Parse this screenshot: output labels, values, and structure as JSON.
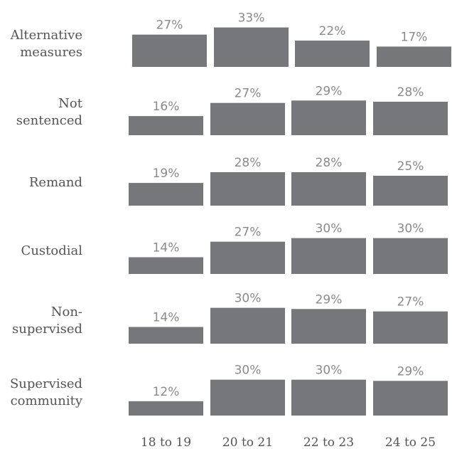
{
  "chart_data": {
    "type": "bar",
    "layout": "small-multiples",
    "categories": [
      "18 to 19",
      "20 to 21",
      "22 to 23",
      "24 to 25"
    ],
    "value_suffix": "%",
    "bar_color": "#75777a",
    "grid": false,
    "series": [
      {
        "name": "Alternative measures",
        "values": [
          27,
          33,
          22,
          17
        ]
      },
      {
        "name": "Not sentenced",
        "values": [
          16,
          27,
          29,
          28
        ]
      },
      {
        "name": "Remand",
        "values": [
          19,
          28,
          28,
          25
        ]
      },
      {
        "name": "Custodial",
        "values": [
          14,
          27,
          30,
          30
        ]
      },
      {
        "name": "Non-supervised",
        "values": [
          14,
          30,
          29,
          27
        ]
      },
      {
        "name": "Supervised community",
        "values": [
          12,
          30,
          30,
          29
        ]
      }
    ],
    "row_label_lines": [
      [
        "Alternative",
        "measures"
      ],
      [
        "Not",
        "sentenced"
      ],
      [
        "Remand"
      ],
      [
        "Custodial"
      ],
      [
        "Non-",
        "supervised"
      ],
      [
        "Supervised",
        "community"
      ]
    ]
  }
}
